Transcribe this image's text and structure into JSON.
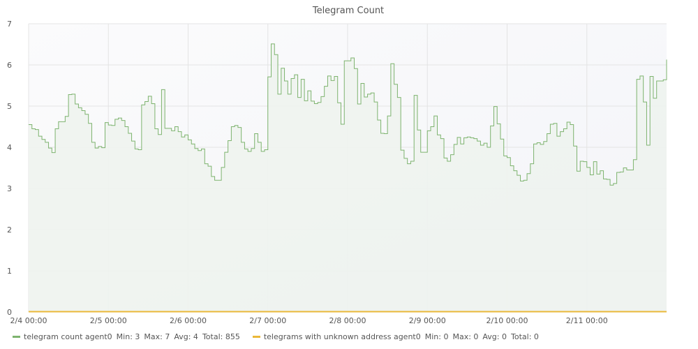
{
  "chart_data": {
    "type": "line",
    "step": true,
    "title": "Telegram Count",
    "xlabel": "",
    "ylabel": "",
    "x_ticks": [
      "2/4 00:00",
      "2/5 00:00",
      "2/6 00:00",
      "2/7 00:00",
      "2/8 00:00",
      "2/9 00:00",
      "2/10 00:00",
      "2/11 00:00"
    ],
    "x_range": [
      "2/4 00:00",
      "2/11 23:00"
    ],
    "y_ticks": [
      0,
      1,
      2,
      3,
      4,
      5,
      6,
      7
    ],
    "ylim": [
      0,
      7
    ],
    "grid": true,
    "legend_position": "bottom-left",
    "series": [
      {
        "name": "telegram count agent0",
        "color": "#7db36e",
        "fill": "#eef3ee",
        "stats": {
          "min": "Min: 3",
          "max": "Max: 7",
          "avg": "Avg: 4",
          "total": "Total: 855"
        },
        "values": [
          4.55,
          4.45,
          4.43,
          4.27,
          4.19,
          4.12,
          3.98,
          3.87,
          4.45,
          4.62,
          4.62,
          4.75,
          5.28,
          5.29,
          5.05,
          4.96,
          4.89,
          4.8,
          4.58,
          4.12,
          3.98,
          4.02,
          3.99,
          4.6,
          4.54,
          4.53,
          4.68,
          4.71,
          4.65,
          4.5,
          4.34,
          4.15,
          3.96,
          3.94,
          5.03,
          5.11,
          5.24,
          5.06,
          4.45,
          4.31,
          5.4,
          4.46,
          4.46,
          4.4,
          4.5,
          4.38,
          4.25,
          4.3,
          4.18,
          4.08,
          3.97,
          3.92,
          3.96,
          3.6,
          3.54,
          3.29,
          3.2,
          3.2,
          3.51,
          3.88,
          4.16,
          4.5,
          4.53,
          4.48,
          4.12,
          3.96,
          3.9,
          3.97,
          4.33,
          4.12,
          3.9,
          3.94,
          5.71,
          6.51,
          6.25,
          5.29,
          5.92,
          5.61,
          5.29,
          5.67,
          5.76,
          5.21,
          5.65,
          5.13,
          5.37,
          5.12,
          5.06,
          5.09,
          5.23,
          5.48,
          5.73,
          5.62,
          5.72,
          5.08,
          4.56,
          6.1,
          6.1,
          6.17,
          5.91,
          5.05,
          5.55,
          5.22,
          5.29,
          5.32,
          5.1,
          4.66,
          4.34,
          4.33,
          4.76,
          6.03,
          5.53,
          5.21,
          3.93,
          3.73,
          3.6,
          3.66,
          5.26,
          4.42,
          3.88,
          3.88,
          4.4,
          4.5,
          4.76,
          4.3,
          4.21,
          3.74,
          3.66,
          3.82,
          4.07,
          4.24,
          4.08,
          4.23,
          4.25,
          4.23,
          4.21,
          4.15,
          4.05,
          4.1,
          4.0,
          4.52,
          4.99,
          4.57,
          4.2,
          3.79,
          3.75,
          3.55,
          3.43,
          3.32,
          3.18,
          3.2,
          3.36,
          3.6,
          4.08,
          4.11,
          4.07,
          4.14,
          4.33,
          4.56,
          4.58,
          4.27,
          4.38,
          4.45,
          4.61,
          4.55,
          4.03,
          3.42,
          3.66,
          3.65,
          3.51,
          3.33,
          3.65,
          3.35,
          3.43,
          3.23,
          3.22,
          3.08,
          3.12,
          3.39,
          3.4,
          3.5,
          3.45,
          3.45,
          3.7,
          5.65,
          5.73,
          5.1,
          4.05,
          5.72,
          5.19,
          5.61,
          5.61,
          5.64,
          6.13
        ]
      },
      {
        "name": "telegrams with unknown address agent0",
        "color": "#eab839",
        "stats": {
          "min": "Min: 0",
          "max": "Max: 0",
          "avg": "Avg: 0",
          "total": "Total: 0"
        },
        "values": [
          0,
          0
        ]
      }
    ]
  }
}
